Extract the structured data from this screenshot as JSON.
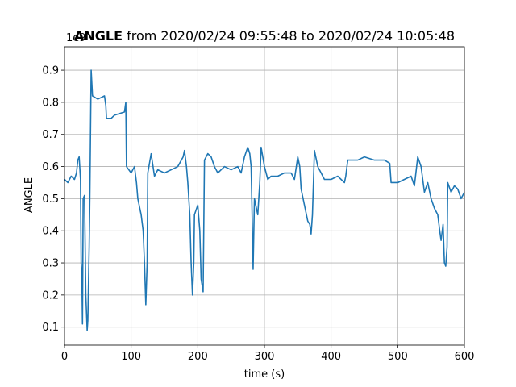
{
  "chart_data": {
    "type": "line",
    "title_bold": "ANGLE",
    "title": "from 2020/02/24 09:55:48 to 2020/02/24 10:05:48",
    "offset_label": "1e9",
    "x_label": "time (s)",
    "y_label": "ANGLE",
    "color": "#1f77b4",
    "x": [
      0,
      5,
      10,
      15,
      18,
      20,
      22,
      24,
      25,
      26,
      27,
      28,
      30,
      32,
      34,
      35,
      37,
      38,
      40,
      42,
      50,
      60,
      62,
      63,
      70,
      75,
      90,
      92,
      93,
      100,
      105,
      108,
      110,
      115,
      118,
      120,
      122,
      124,
      125,
      130,
      135,
      140,
      150,
      160,
      170,
      178,
      180,
      183,
      185,
      188,
      190,
      192,
      194,
      195,
      200,
      203,
      205,
      208,
      210,
      215,
      220,
      225,
      230,
      240,
      250,
      260,
      265,
      270,
      275,
      278,
      280,
      282,
      283,
      285,
      290,
      293,
      295,
      300,
      305,
      310,
      320,
      330,
      340,
      345,
      350,
      353,
      355,
      360,
      363,
      365,
      368,
      370,
      372,
      375,
      380,
      385,
      390,
      400,
      410,
      420,
      422,
      425,
      440,
      450,
      465,
      480,
      488,
      490,
      500,
      510,
      520,
      525,
      530,
      535,
      540,
      545,
      550,
      555,
      560,
      563,
      565,
      568,
      570,
      572,
      574,
      575,
      580,
      585,
      590,
      595,
      600
    ],
    "values": [
      0.56,
      0.55,
      0.57,
      0.56,
      0.58,
      0.62,
      0.63,
      0.56,
      0.3,
      0.27,
      0.11,
      0.5,
      0.51,
      0.2,
      0.09,
      0.12,
      0.35,
      0.5,
      0.9,
      0.82,
      0.81,
      0.82,
      0.79,
      0.75,
      0.75,
      0.76,
      0.77,
      0.8,
      0.6,
      0.58,
      0.6,
      0.55,
      0.5,
      0.45,
      0.4,
      0.3,
      0.17,
      0.3,
      0.58,
      0.64,
      0.57,
      0.59,
      0.58,
      0.59,
      0.6,
      0.63,
      0.65,
      0.6,
      0.55,
      0.45,
      0.3,
      0.2,
      0.3,
      0.45,
      0.48,
      0.4,
      0.25,
      0.21,
      0.62,
      0.64,
      0.63,
      0.6,
      0.58,
      0.6,
      0.59,
      0.6,
      0.58,
      0.63,
      0.66,
      0.64,
      0.6,
      0.4,
      0.28,
      0.5,
      0.45,
      0.55,
      0.66,
      0.6,
      0.56,
      0.57,
      0.57,
      0.58,
      0.58,
      0.56,
      0.63,
      0.6,
      0.53,
      0.48,
      0.45,
      0.43,
      0.42,
      0.39,
      0.45,
      0.65,
      0.6,
      0.58,
      0.56,
      0.56,
      0.57,
      0.55,
      0.57,
      0.62,
      0.62,
      0.63,
      0.62,
      0.62,
      0.61,
      0.55,
      0.55,
      0.56,
      0.57,
      0.54,
      0.63,
      0.6,
      0.52,
      0.55,
      0.5,
      0.47,
      0.45,
      0.4,
      0.37,
      0.42,
      0.3,
      0.29,
      0.35,
      0.55,
      0.52,
      0.54,
      0.53,
      0.5,
      0.52
    ],
    "xlim": [
      0,
      600
    ],
    "xticks": [
      0,
      100,
      200,
      300,
      400,
      500,
      600
    ],
    "ylim": [
      0.044,
      0.973
    ],
    "yticks": [
      0.1,
      0.2,
      0.3,
      0.4,
      0.5,
      0.6,
      0.7,
      0.8,
      0.9
    ],
    "grid": true
  }
}
